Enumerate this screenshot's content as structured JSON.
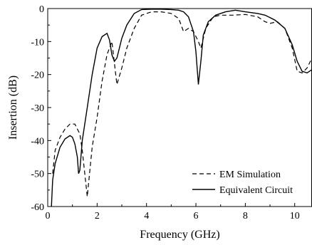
{
  "chart_data": {
    "type": "line",
    "xlabel": "Frequency (GHz)",
    "ylabel": "Insertion (dB)",
    "xlim": [
      0,
      10.7
    ],
    "ylim": [
      -60,
      0
    ],
    "xticks": [
      0,
      2,
      4,
      6,
      8,
      10
    ],
    "yticks": [
      0,
      -10,
      -20,
      -30,
      -40,
      -50,
      -60
    ],
    "xtick_labels": [
      "0",
      "2",
      "4",
      "6",
      "8",
      "10"
    ],
    "ytick_labels": [
      "0",
      "-10",
      "-20",
      "-30",
      "-40",
      "-50",
      "-60"
    ],
    "grid": false,
    "legend_position": "bottom-right",
    "series": [
      {
        "name": "EM Simulation",
        "style": "dashed",
        "color": "#000000",
        "x": [
          0.2,
          0.3,
          0.5,
          0.7,
          0.9,
          1.1,
          1.3,
          1.4,
          1.5,
          1.6,
          1.8,
          2.0,
          2.2,
          2.4,
          2.6,
          2.8,
          3.0,
          3.2,
          3.5,
          3.8,
          4.2,
          4.6,
          5.0,
          5.3,
          5.5,
          5.7,
          5.9,
          6.1,
          6.2,
          6.4,
          6.7,
          7.0,
          7.5,
          8.0,
          8.5,
          8.8,
          9.0,
          9.3,
          9.6,
          9.9,
          10.1,
          10.3,
          10.5,
          10.7
        ],
        "y": [
          -50,
          -43,
          -39,
          -36.5,
          -35,
          -35,
          -38,
          -43,
          -50,
          -57,
          -42,
          -33,
          -22,
          -14,
          -10,
          -23,
          -18,
          -12,
          -6,
          -2,
          -1,
          -1,
          -1.5,
          -3,
          -7,
          -6,
          -7,
          -10,
          -12,
          -6,
          -2.5,
          -2,
          -2,
          -1.8,
          -2.5,
          -4,
          -4.5,
          -4,
          -6,
          -12,
          -19,
          -19.5,
          -18,
          -15
        ]
      },
      {
        "name": "Equivalent Circuit",
        "style": "solid",
        "color": "#000000",
        "x": [
          0.15,
          0.2,
          0.3,
          0.5,
          0.7,
          0.9,
          1.0,
          1.1,
          1.2,
          1.25,
          1.3,
          1.4,
          1.6,
          1.8,
          2.0,
          2.2,
          2.4,
          2.5,
          2.6,
          2.7,
          2.8,
          2.9,
          3.0,
          3.2,
          3.5,
          3.8,
          4.2,
          4.6,
          5.0,
          5.3,
          5.5,
          5.7,
          5.9,
          6.0,
          6.1,
          6.2,
          6.3,
          6.5,
          6.8,
          7.2,
          7.6,
          8.0,
          8.5,
          8.8,
          9.2,
          9.6,
          9.9,
          10.1,
          10.3,
          10.5,
          10.7
        ],
        "y": [
          -60,
          -52,
          -47,
          -42,
          -39.5,
          -38.5,
          -39,
          -41,
          -45,
          -50,
          -49,
          -40,
          -30,
          -20,
          -12,
          -8.5,
          -7.5,
          -9.5,
          -14,
          -16,
          -15,
          -12,
          -9,
          -5,
          -1.5,
          -0.3,
          -0.2,
          -0.2,
          -0.3,
          -0.5,
          -1,
          -2.5,
          -7,
          -13,
          -23,
          -16,
          -8,
          -4,
          -2,
          -1,
          -0.5,
          -1,
          -1.5,
          -2,
          -3.5,
          -6,
          -11,
          -16,
          -19,
          -19.5,
          -18.5
        ]
      }
    ]
  }
}
